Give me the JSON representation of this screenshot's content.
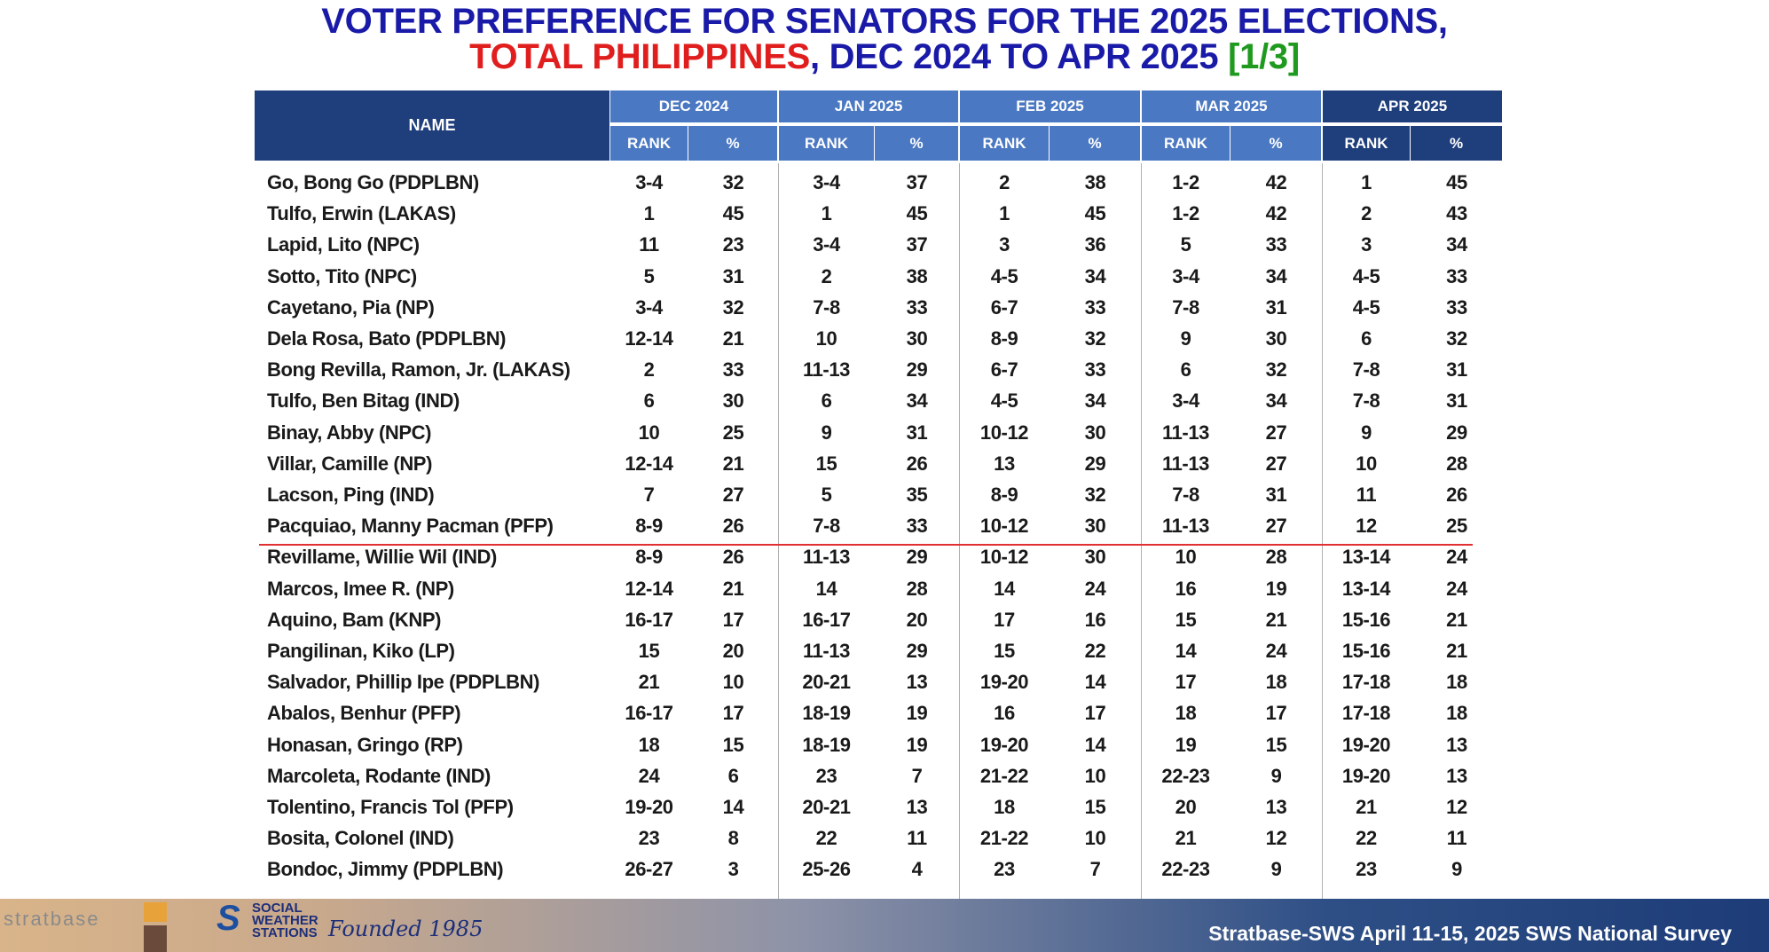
{
  "header": {
    "title_line1": "VOTER PREFERENCE FOR SENATORS FOR THE 2025 ELECTIONS,",
    "title_line2_red": "TOTAL PHILIPPINES",
    "title_line2_blue": ", DEC 2024 TO APR 2025 ",
    "title_line2_green": "[1/3]"
  },
  "table": {
    "name_header": "NAME",
    "periods": [
      "DEC 2024",
      "JAN 2025",
      "FEB 2025",
      "MAR 2025",
      "APR 2025"
    ],
    "subheaders": [
      "RANK",
      "%"
    ],
    "rows": [
      [
        "Go, Bong Go (PDPLBN)",
        "3-4",
        32,
        "3-4",
        37,
        "2",
        38,
        "1-2",
        42,
        "1",
        45
      ],
      [
        "Tulfo, Erwin (LAKAS)",
        "1",
        45,
        "1",
        45,
        "1",
        45,
        "1-2",
        42,
        "2",
        43
      ],
      [
        "Lapid, Lito (NPC)",
        "11",
        23,
        "3-4",
        37,
        "3",
        36,
        "5",
        33,
        "3",
        34
      ],
      [
        "Sotto, Tito (NPC)",
        "5",
        31,
        "2",
        38,
        "4-5",
        34,
        "3-4",
        34,
        "4-5",
        33
      ],
      [
        "Cayetano, Pia (NP)",
        "3-4",
        32,
        "7-8",
        33,
        "6-7",
        33,
        "7-8",
        31,
        "4-5",
        33
      ],
      [
        "Dela Rosa, Bato (PDPLBN)",
        "12-14",
        21,
        "10",
        30,
        "8-9",
        32,
        "9",
        30,
        "6",
        32
      ],
      [
        "Bong Revilla, Ramon, Jr. (LAKAS)",
        "2",
        33,
        "11-13",
        29,
        "6-7",
        33,
        "6",
        32,
        "7-8",
        31
      ],
      [
        "Tulfo, Ben Bitag (IND)",
        "6",
        30,
        "6",
        34,
        "4-5",
        34,
        "3-4",
        34,
        "7-8",
        31
      ],
      [
        "Binay, Abby (NPC)",
        "10",
        25,
        "9",
        31,
        "10-12",
        30,
        "11-13",
        27,
        "9",
        29
      ],
      [
        "Villar, Camille (NP)",
        "12-14",
        21,
        "15",
        26,
        "13",
        29,
        "11-13",
        27,
        "10",
        28
      ],
      [
        "Lacson, Ping (IND)",
        "7",
        27,
        "5",
        35,
        "8-9",
        32,
        "7-8",
        31,
        "11",
        26
      ],
      [
        "Pacquiao, Manny Pacman (PFP)",
        "8-9",
        26,
        "7-8",
        33,
        "10-12",
        30,
        "11-13",
        27,
        "12",
        25
      ],
      [
        "Revillame, Willie Wil (IND)",
        "8-9",
        26,
        "11-13",
        29,
        "10-12",
        30,
        "10",
        28,
        "13-14",
        24
      ],
      [
        "Marcos, Imee R. (NP)",
        "12-14",
        21,
        "14",
        28,
        "14",
        24,
        "16",
        19,
        "13-14",
        24
      ],
      [
        "Aquino, Bam (KNP)",
        "16-17",
        17,
        "16-17",
        20,
        "17",
        16,
        "15",
        21,
        "15-16",
        21
      ],
      [
        "Pangilinan, Kiko (LP)",
        "15",
        20,
        "11-13",
        29,
        "15",
        22,
        "14",
        24,
        "15-16",
        21
      ],
      [
        "Salvador, Phillip Ipe (PDPLBN)",
        "21",
        10,
        "20-21",
        13,
        "19-20",
        14,
        "17",
        18,
        "17-18",
        18
      ],
      [
        "Abalos, Benhur (PFP)",
        "16-17",
        17,
        "18-19",
        19,
        "16",
        17,
        "18",
        17,
        "17-18",
        18
      ],
      [
        "Honasan, Gringo (RP)",
        "18",
        15,
        "18-19",
        19,
        "19-20",
        14,
        "19",
        15,
        "19-20",
        13
      ],
      [
        "Marcoleta, Rodante (IND)",
        "24",
        6,
        "23",
        7,
        "21-22",
        10,
        "22-23",
        9,
        "19-20",
        13
      ],
      [
        "Tolentino, Francis Tol (PFP)",
        "19-20",
        14,
        "20-21",
        13,
        "18",
        15,
        "20",
        13,
        "21",
        12
      ],
      [
        "Bosita, Colonel (IND)",
        "23",
        8,
        "22",
        11,
        "21-22",
        10,
        "21",
        12,
        "22",
        11
      ],
      [
        "Bondoc, Jimmy (PDPLBN)",
        "26-27",
        3,
        "25-26",
        4,
        "23",
        7,
        "22-23",
        9,
        "23",
        9
      ]
    ]
  },
  "footer": {
    "logo_text": "stratbase",
    "sws_line1": "SOCIAL",
    "sws_line2": "WEATHER",
    "sws_line3": "STATIONS",
    "founded": "Founded 1985",
    "source": "Stratbase-SWS April 11-15, 2025 SWS National Survey"
  }
}
